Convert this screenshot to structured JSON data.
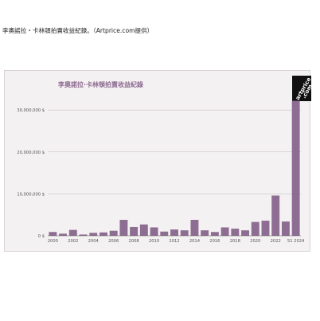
{
  "caption": "李奧諾拉・卡林頓拍賣收益紀錄。（Artprice.com提供）",
  "logo": {
    "line1": "artprice",
    "line2": ".com"
  },
  "chart_data": {
    "type": "bar",
    "title": "李奧諾拉·卡林頓拍賣收益紀錄",
    "xlabel": "",
    "ylabel": "",
    "ylim": [
      0,
      32500000
    ],
    "bar_color": "#8e6d92",
    "grid": true,
    "categories": [
      "2000",
      "2001",
      "2002",
      "2003",
      "2004",
      "2005",
      "2006",
      "2007",
      "2008",
      "2009",
      "2010",
      "2011",
      "2012",
      "2013",
      "2014",
      "2015",
      "2016",
      "2017",
      "2018",
      "2019",
      "2020",
      "2021",
      "2022",
      "2023",
      "S1 2024"
    ],
    "values": [
      900000,
      500000,
      1400000,
      300000,
      700000,
      800000,
      1200000,
      3800000,
      2100000,
      2700000,
      2000000,
      1000000,
      1500000,
      1300000,
      3800000,
      1300000,
      900000,
      2000000,
      1700000,
      1300000,
      3300000,
      3600000,
      9600000,
      3400000,
      32200000
    ],
    "yticks": [
      {
        "value": 0,
        "label": "0 $"
      },
      {
        "value": 10000000,
        "label": "10,000,000 $"
      },
      {
        "value": 20000000,
        "label": "20,000,000 $"
      },
      {
        "value": 30000000,
        "label": "30,000,000 $"
      }
    ],
    "xtick_labels": [
      "2000",
      "2002",
      "2004",
      "2006",
      "2008",
      "2010",
      "2012",
      "2014",
      "2016",
      "2018",
      "2020",
      "2022",
      "S1 2024"
    ]
  }
}
